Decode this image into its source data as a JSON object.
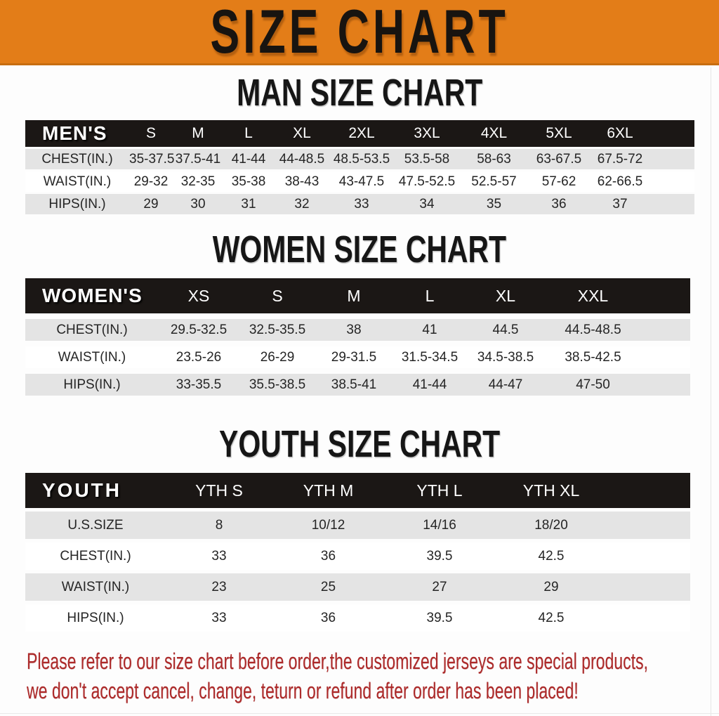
{
  "banner": {
    "title": "SIZE CHART",
    "bg_color": "#e37d18",
    "text_color": "#181410"
  },
  "sections": [
    {
      "id": "man",
      "heading": "MAN SIZE CHART",
      "table": {
        "header_label": "MEN'S",
        "columns": [
          "S",
          "M",
          "L",
          "XL",
          "2XL",
          "3XL",
          "4XL",
          "5XL",
          "6XL"
        ],
        "rows": [
          {
            "label": "CHEST(IN.)",
            "values": [
              "35-37.5",
              "37.5-41",
              "41-44",
              "44-48.5",
              "48.5-53.5",
              "53.5-58",
              "58-63",
              "63-67.5",
              "67.5-72"
            ]
          },
          {
            "label": "WAIST(IN.)",
            "values": [
              "29-32",
              "32-35",
              "35-38",
              "38-43",
              "43-47.5",
              "47.5-52.5",
              "52.5-57",
              "57-62",
              "62-66.5"
            ]
          },
          {
            "label": "HIPS(IN.)",
            "values": [
              "29",
              "30",
              "31",
              "32",
              "33",
              "34",
              "35",
              "36",
              "37"
            ]
          }
        ]
      }
    },
    {
      "id": "women",
      "heading": "WOMEN SIZE CHART",
      "table": {
        "header_label": "WOMEN'S",
        "columns": [
          "XS",
          "S",
          "M",
          "L",
          "XL",
          "XXL"
        ],
        "rows": [
          {
            "label": "CHEST(IN.)",
            "values": [
              "29.5-32.5",
              "32.5-35.5",
              "38",
              "41",
              "44.5",
              "44.5-48.5"
            ]
          },
          {
            "label": "WAIST(IN.)",
            "values": [
              "23.5-26",
              "26-29",
              "29-31.5",
              "31.5-34.5",
              "34.5-38.5",
              "38.5-42.5"
            ]
          },
          {
            "label": "HIPS(IN.)",
            "values": [
              "33-35.5",
              "35.5-38.5",
              "38.5-41",
              "41-44",
              "44-47",
              "47-50"
            ]
          }
        ]
      }
    },
    {
      "id": "youth",
      "heading": "YOUTH SIZE CHART",
      "table": {
        "header_label": "YOUTH",
        "columns": [
          "YTH S",
          "YTH M",
          "YTH L",
          "YTH XL"
        ],
        "rows": [
          {
            "label": "U.S.SIZE",
            "values": [
              "8",
              "10/12",
              "14/16",
              "18/20"
            ]
          },
          {
            "label": "CHEST(IN.)",
            "values": [
              "33",
              "36",
              "39.5",
              "42.5"
            ]
          },
          {
            "label": "WAIST(IN.)",
            "values": [
              "23",
              "25",
              "27",
              "29"
            ]
          },
          {
            "label": "HIPS(IN.)",
            "values": [
              "33",
              "36",
              "39.5",
              "42.5"
            ]
          }
        ]
      }
    }
  ],
  "footer_note": {
    "line1": "Please refer to our size chart before order,the customized jerseys are special products,",
    "line2": "we don't accept cancel, change, teturn or refund after order has been placed!",
    "color": "#ad2a2a"
  },
  "table_colors": {
    "header_bg": "#1b1715",
    "header_text": "#ffffff",
    "row_gray": "#e4e4e4",
    "row_white": "#ffffff"
  }
}
